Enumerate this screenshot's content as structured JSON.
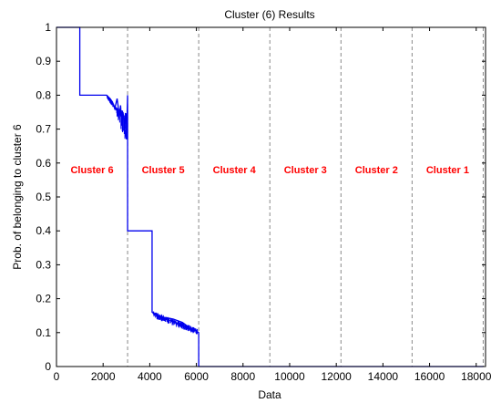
{
  "chart_data": {
    "type": "line",
    "title": "Cluster (6) Results",
    "xlabel": "Data",
    "ylabel": "Prob. of belonging to cluster 6",
    "xlim": [
      0,
      18400
    ],
    "ylim": [
      0,
      1
    ],
    "xticks": [
      0,
      2000,
      4000,
      6000,
      8000,
      10000,
      12000,
      14000,
      16000,
      18000
    ],
    "xtick_labels": [
      "0",
      "2000",
      "4000",
      "6000",
      "8000",
      "10000",
      "12000",
      "14000",
      "16000",
      "18000"
    ],
    "yticks": [
      0,
      0.1,
      0.2,
      0.3,
      0.4,
      0.5,
      0.6,
      0.7,
      0.8,
      0.9,
      1
    ],
    "ytick_labels": [
      "0",
      "0.1",
      "0.2",
      "0.3",
      "0.4",
      "0.5",
      "0.6",
      "0.7",
      "0.8",
      "0.9",
      "1"
    ],
    "grid": false,
    "boundaries": [
      0,
      3050,
      6100,
      9150,
      12200,
      15250,
      18300
    ],
    "regions": [
      {
        "label": "Cluster 6",
        "x_start": 0,
        "x_end": 3050
      },
      {
        "label": "Cluster 5",
        "x_start": 3050,
        "x_end": 6100
      },
      {
        "label": "Cluster 4",
        "x_start": 6100,
        "x_end": 9150
      },
      {
        "label": "Cluster 3",
        "x_start": 9150,
        "x_end": 12200
      },
      {
        "label": "Cluster 2",
        "x_start": 12200,
        "x_end": 15250
      },
      {
        "label": "Cluster 1",
        "x_start": 15250,
        "x_end": 18300
      }
    ],
    "series": [
      {
        "color": "#0000ee",
        "x": [
          0,
          1000,
          1000,
          2150,
          2300,
          2400,
          2500,
          2600,
          2700,
          2750,
          2800,
          2850,
          2900,
          2950,
          3000,
          3050,
          3050,
          4100,
          4100,
          4300,
          4600,
          5000,
          5400,
          5600,
          5700,
          6000,
          6100,
          6100,
          18300
        ],
        "y": [
          1,
          1,
          0.8,
          0.8,
          0.79,
          0.78,
          0.76,
          0.79,
          0.74,
          0.77,
          0.71,
          0.75,
          0.73,
          0.69,
          0.67,
          0.8,
          0.4,
          0.4,
          0.16,
          0.15,
          0.145,
          0.14,
          0.13,
          0.12,
          0.11,
          0.105,
          0.1,
          0,
          0
        ]
      }
    ],
    "label_color": "#ff0000",
    "boundary_color": "#888888"
  }
}
